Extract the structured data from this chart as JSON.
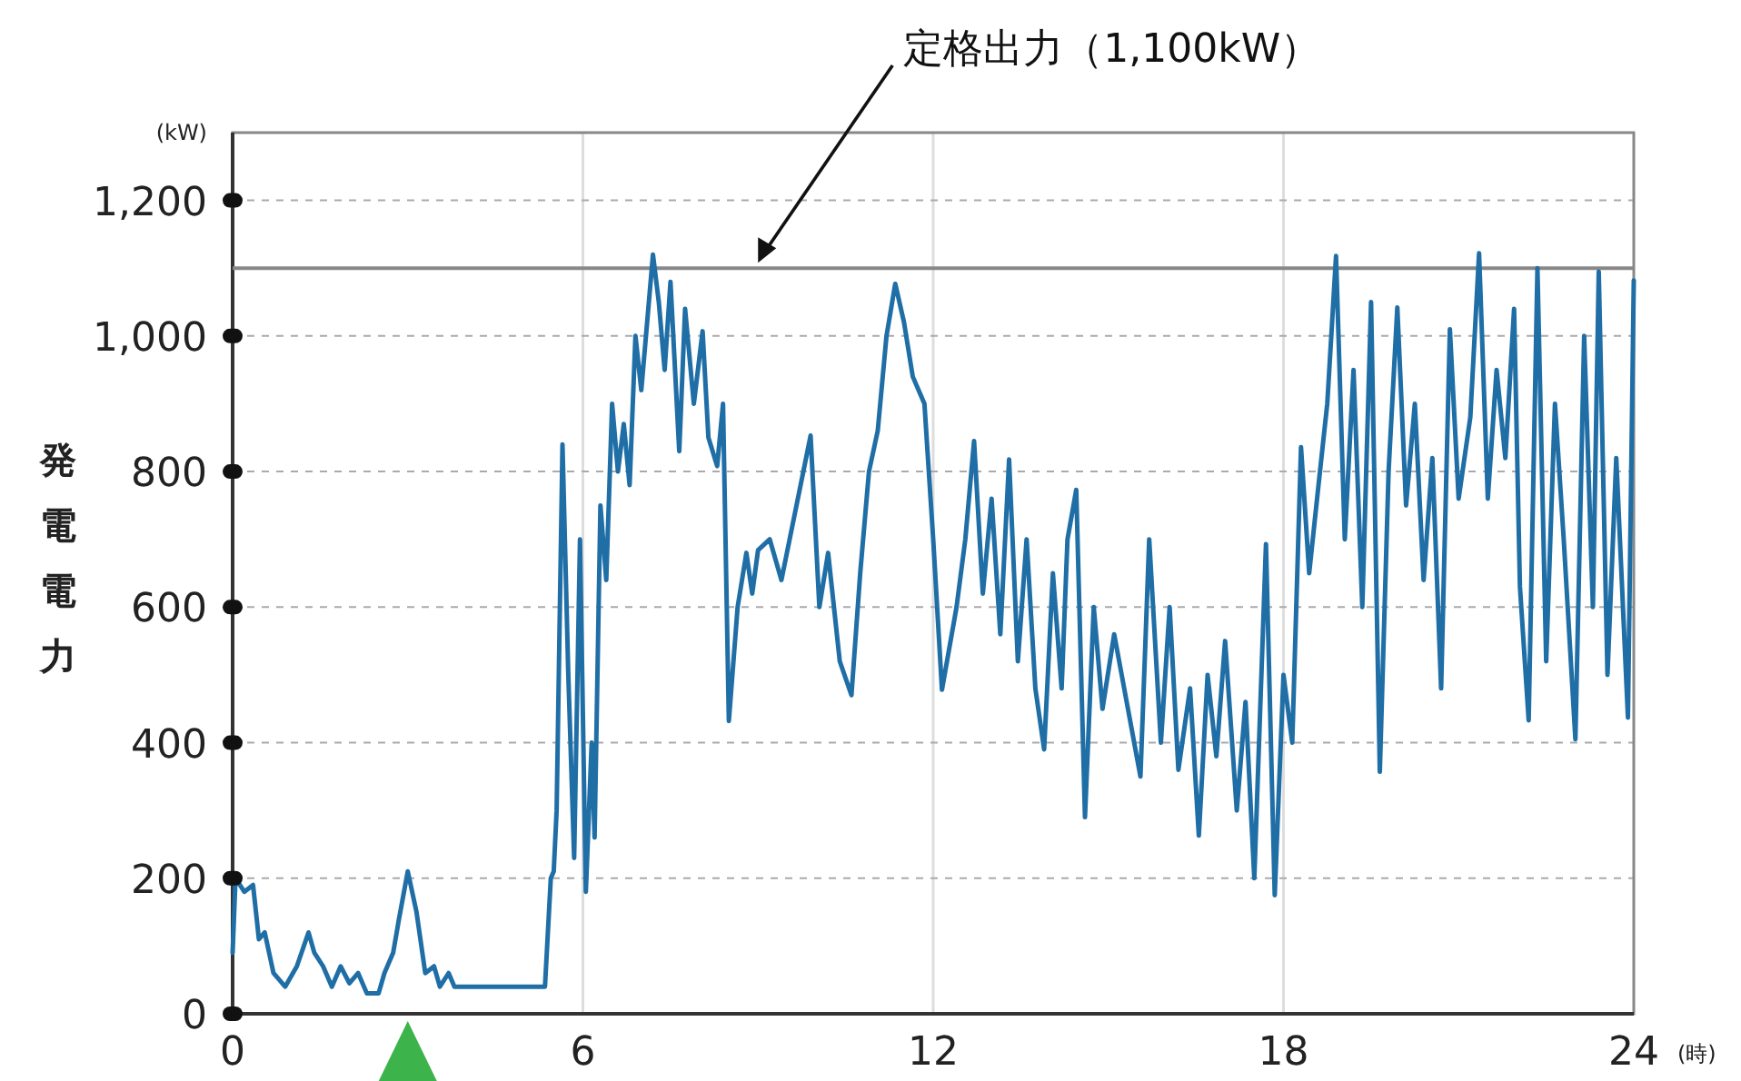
{
  "chart_data": {
    "type": "line",
    "ylabel": "発電電力",
    "annotations": [
      {
        "text": "定格出力（1,100kW）",
        "x": 9,
        "y": 1100
      },
      "(kW)",
      "(時)"
    ],
    "xlim": [
      0,
      24
    ],
    "ylim": [
      0,
      1300
    ],
    "xticks": [
      0,
      6,
      12,
      18,
      24
    ],
    "yticks": [
      0,
      200,
      400,
      600,
      800,
      {
        "value": 1000,
        "label": "1,000"
      },
      {
        "value": 1200,
        "label": "1,200"
      }
    ],
    "grid": true,
    "marker": "none",
    "line_style": "solid",
    "ref_lines": [
      {
        "axis": "y",
        "value": 1100,
        "color": "#888888"
      }
    ],
    "series": [
      {
        "color": "#1f6ea6",
        "x": [
          0,
          0.05,
          0.2,
          0.35,
          0.45,
          0.55,
          0.7,
          0.9,
          1.1,
          1.3,
          1.4,
          1.55,
          1.7,
          1.85,
          2.0,
          2.15,
          2.3,
          2.5,
          2.6,
          2.75,
          2.85,
          3.0,
          3.15,
          3.3,
          3.45,
          3.55,
          3.7,
          3.8,
          4.0,
          5.35,
          5.45,
          5.5,
          5.55,
          5.65,
          5.75,
          5.85,
          5.95,
          6.05,
          6.15,
          6.2,
          6.3,
          6.4,
          6.5,
          6.6,
          6.7,
          6.8,
          6.9,
          7.0,
          7.2,
          7.3,
          7.4,
          7.5,
          7.65,
          7.75,
          7.9,
          8.05,
          8.15,
          8.3,
          8.4,
          8.5,
          8.65,
          8.8,
          8.9,
          9.0,
          9.2,
          9.4,
          9.9,
          10.05,
          10.2,
          10.4,
          10.6,
          10.75,
          10.9,
          11.05,
          11.2,
          11.35,
          11.5,
          11.65,
          11.85,
          12.0,
          12.15,
          12.4,
          12.55,
          12.7,
          12.85,
          13.0,
          13.15,
          13.3,
          13.45,
          13.6,
          13.75,
          13.9,
          14.05,
          14.2,
          14.3,
          14.45,
          14.6,
          14.75,
          14.9,
          15.1,
          15.55,
          15.7,
          15.9,
          16.05,
          16.2,
          16.4,
          16.55,
          16.7,
          16.85,
          17.0,
          17.2,
          17.35,
          17.5,
          17.7,
          17.85,
          18.0,
          18.15,
          18.3,
          18.44,
          18.6,
          18.75,
          18.9,
          19.05,
          19.2,
          19.35,
          19.5,
          19.65,
          19.8,
          19.95,
          20.1,
          20.25,
          20.4,
          20.55,
          20.7,
          20.85,
          21.0,
          21.2,
          21.35,
          21.5,
          21.65,
          21.8,
          21.95,
          22.05,
          22.2,
          22.35,
          22.5,
          22.65,
          22.8,
          23.0,
          23.15,
          23.3,
          23.4,
          23.55,
          23.7,
          23.9,
          24
        ],
        "values": [
          90,
          200,
          180,
          190,
          110,
          120,
          60,
          40,
          70,
          120,
          90,
          70,
          40,
          70,
          45,
          60,
          30,
          30,
          60,
          90,
          140,
          210,
          150,
          60,
          70,
          40,
          60,
          40,
          40,
          40,
          200,
          210,
          300,
          840,
          500,
          230,
          700,
          180,
          400,
          260,
          750,
          640,
          900,
          800,
          870,
          780,
          1000,
          920,
          1120,
          1050,
          950,
          1080,
          830,
          1040,
          900,
          1007,
          850,
          808,
          900,
          432,
          600,
          680,
          620,
          684,
          700,
          640,
          853,
          600,
          680,
          520,
          470,
          650,
          800,
          860,
          1000,
          1077,
          1020,
          940,
          900,
          700,
          478,
          600,
          700,
          845,
          620,
          760,
          560,
          818,
          520,
          700,
          480,
          390,
          650,
          480,
          700,
          773,
          290,
          600,
          450,
          560,
          350,
          700,
          400,
          600,
          360,
          480,
          263,
          500,
          380,
          550,
          300,
          460,
          200,
          693,
          175,
          500,
          400,
          836,
          650,
          780,
          900,
          1118,
          700,
          950,
          600,
          1050,
          357,
          800,
          1042,
          750,
          900,
          640,
          820,
          480,
          1010,
          760,
          880,
          1122,
          760,
          950,
          820,
          1040,
          630,
          433,
          1100,
          520,
          900,
          700,
          405,
          1000,
          600,
          1095,
          500,
          820,
          437,
          1082
        ]
      }
    ]
  }
}
